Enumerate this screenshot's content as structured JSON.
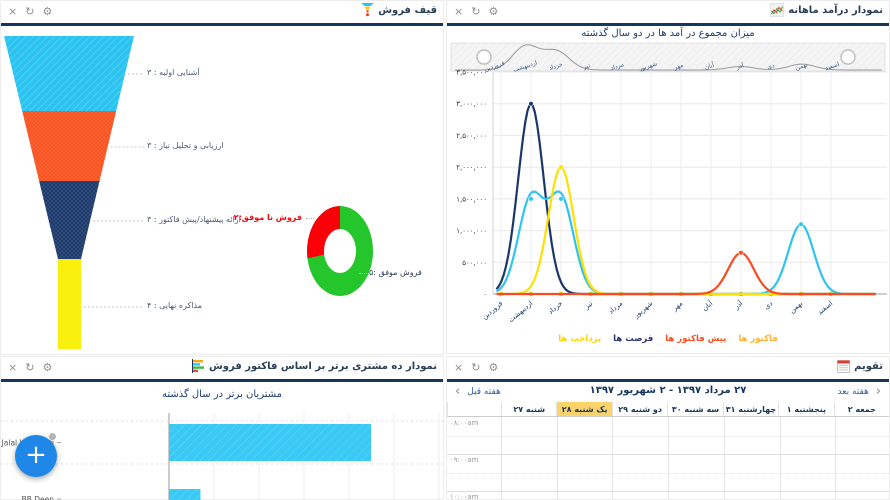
{
  "panel_controls": {
    "close": "×",
    "refresh": "↻",
    "settings": "⚙"
  },
  "funnel_panel": {
    "title": "قیف فروش"
  },
  "income_panel": {
    "title": "نمودار درآمد ماهانه"
  },
  "customers_panel": {
    "title": "نمودار ده مشتری برتر بر اساس فاکتور فروش",
    "fab_label": "+"
  },
  "calendar_panel": {
    "title": "تقویم",
    "prev_week": "هفته قبل",
    "next_week": "هفته بعد",
    "prev_chevron": "‹",
    "next_chevron": "›",
    "date_range": "۲۷ مرداد ۱۳۹۷ - ۲ شهریور ۱۳۹۷",
    "days": [
      {
        "label": "جمعه ۲",
        "highlight": false
      },
      {
        "label": "پنجشنبه ۱",
        "highlight": false
      },
      {
        "label": "چهارشنبه ۳۱",
        "highlight": false
      },
      {
        "label": "سه شنبه ۳۰",
        "highlight": false
      },
      {
        "label": "دو شنبه ۲۹",
        "highlight": false
      },
      {
        "label": "یک شنبه ۲۸",
        "highlight": true
      },
      {
        "label": "شنبه ۲۷",
        "highlight": false
      }
    ],
    "times": [
      "۰۸:۰۰am",
      "۰۹:۰۰am",
      "۱۰:۰۰am"
    ]
  },
  "chart_data": [
    {
      "id": "sales-funnel",
      "type": "funnel",
      "title": "قیف فروش",
      "stages": [
        {
          "label": "آشنایی اولیه : ۳",
          "value": 3,
          "color": "#2bc4f1"
        },
        {
          "label": "ارزیابی و تحلیل نیاز : ۳",
          "value": 3,
          "color": "#f95321"
        },
        {
          "label": "ارائه پیشنهاد/پیش فاکتور : ۳",
          "value": 3,
          "color": "#1d3a6d"
        },
        {
          "label": "مذاکره نهایی : ۴",
          "value": 4,
          "color": "#f9ef02"
        }
      ],
      "donut": {
        "type": "donut",
        "slices": [
          {
            "label": "فروش موفق :۵",
            "value": 5,
            "color": "#25c52c"
          },
          {
            "label": "فروش نا موفق:۲",
            "value": 2,
            "color": "#fb0007"
          }
        ]
      }
    },
    {
      "id": "monthly-income",
      "type": "line",
      "title": "میزان مجموع در آمد ها در دو سال گذشته",
      "categories": [
        "فروردین",
        "اردیبهشت",
        "خرداد",
        "تیر",
        "مرداد",
        "شهریور",
        "مهر",
        "آبان",
        "آذر",
        "دی",
        "بهمن",
        "اسفند"
      ],
      "series": [
        {
          "name": "فرصت ها",
          "color": "#1b3768",
          "values": [
            0,
            3000000,
            0,
            0,
            0,
            0,
            0,
            0,
            0,
            0,
            0,
            0
          ]
        },
        {
          "name": "فاکتور ها",
          "color": "#2fc4f0",
          "values": [
            0,
            1500000,
            1500000,
            0,
            0,
            0,
            0,
            0,
            0,
            0,
            1100000,
            0
          ]
        },
        {
          "name": "پرداخت ها",
          "color": "#fee000",
          "values": [
            0,
            0,
            2000000,
            0,
            0,
            0,
            0,
            0,
            0,
            0,
            0,
            0
          ]
        },
        {
          "name": "پیش فاکتور ها",
          "color": "#fa4b22",
          "values": [
            0,
            0,
            0,
            0,
            0,
            0,
            0,
            0,
            650000,
            0,
            0,
            0
          ]
        }
      ],
      "legend": [
        {
          "label": "فاکتور ها",
          "color": "#ffb12e"
        },
        {
          "label": "پیش فاکتور ها",
          "color": "#ff4a1d"
        },
        {
          "label": "فرصت ها",
          "color": "#25356b"
        },
        {
          "label": "پرداخت ها",
          "color": "#ffd20d"
        }
      ],
      "ylim": [
        0,
        3500000
      ],
      "ytick_labels_top_to_bottom": [
        "۳,۵۰۰,۰۰۰",
        "۳,۰۰۰,۰۰۰",
        "۲,۵۰۰,۰۰۰",
        "۲,۰۰۰,۰۰۰",
        "۱,۵۰۰,۰۰۰",
        "۱,۰۰۰,۰۰۰",
        "۵۰۰,۰۰۰",
        "۰"
      ],
      "grid": true,
      "legend_position": "bottom",
      "navigator_months": [
        "فروردین",
        "اردیبهشت",
        "خرداد",
        "تیر",
        "مرداد",
        "شهریور",
        "مهر",
        "آبان",
        "آذر",
        "دی",
        "بهمن",
        "اسفند"
      ]
    },
    {
      "id": "top-customers",
      "type": "bar",
      "title": "مشتریان برتر در سال گذشته",
      "orientation": "horizontal",
      "categories": [
        "Jalal Hemmati",
        "BB Deen"
      ],
      "values": [
        4.5,
        0.7
      ],
      "bar_color": "#39c9f5",
      "note_axis": "gridlines only, no value labels visible"
    }
  ]
}
